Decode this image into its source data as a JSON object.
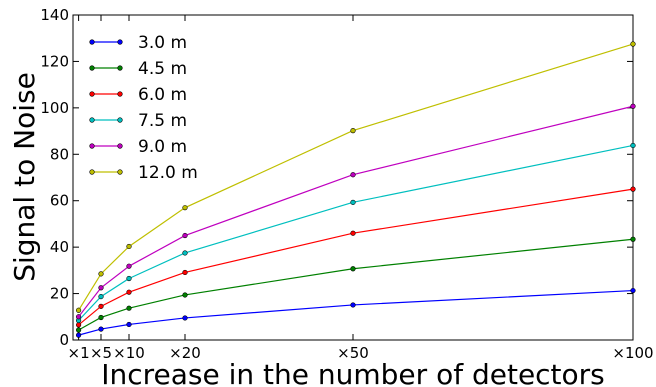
{
  "chart_data": {
    "type": "line",
    "xlabel": "Increase in the number of detectors",
    "ylabel": "Signal to Noise",
    "x": [
      1,
      5,
      10,
      20,
      50,
      100
    ],
    "x_tick_labels": [
      "×1",
      "×5",
      "×10",
      "×20",
      "×50",
      "×100"
    ],
    "xlim": [
      0,
      100
    ],
    "ylim": [
      0,
      140
    ],
    "y_ticks": [
      0,
      20,
      40,
      60,
      80,
      100,
      120,
      140
    ],
    "grid": false,
    "legend_position": "top-left",
    "series": [
      {
        "name": "3.0 m",
        "color": "#0000ff",
        "values": [
          2.1,
          4.7,
          6.7,
          9.5,
          15.1,
          21.3
        ]
      },
      {
        "name": "4.5 m",
        "color": "#008000",
        "values": [
          4.3,
          9.7,
          13.7,
          19.4,
          30.7,
          43.4
        ]
      },
      {
        "name": "6.0 m",
        "color": "#ff0000",
        "values": [
          6.5,
          14.5,
          20.6,
          29.1,
          46.0,
          65.0
        ]
      },
      {
        "name": "7.5 m",
        "color": "#00bfbf",
        "values": [
          8.4,
          18.7,
          26.5,
          37.5,
          59.3,
          83.8
        ]
      },
      {
        "name": "9.0 m",
        "color": "#bf00bf",
        "values": [
          10.0,
          22.5,
          31.8,
          45.0,
          71.2,
          100.7
        ]
      },
      {
        "name": "12.0 m",
        "color": "#bfbf00",
        "values": [
          12.8,
          28.5,
          40.3,
          57.0,
          90.2,
          127.5
        ]
      }
    ]
  }
}
